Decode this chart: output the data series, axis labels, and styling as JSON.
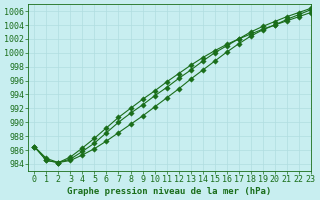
{
  "title": "Graphe pression niveau de la mer (hPa)",
  "bg_color": "#c8eef0",
  "grid_color": "#b0dde0",
  "line_color": "#1a6e1a",
  "marker_color": "#1a6e1a",
  "xlim": [
    -0.5,
    23
  ],
  "ylim": [
    983,
    1007
  ],
  "yticks": [
    984,
    986,
    988,
    990,
    992,
    994,
    996,
    998,
    1000,
    1002,
    1004,
    1006
  ],
  "xticks": [
    0,
    1,
    2,
    3,
    4,
    5,
    6,
    7,
    8,
    9,
    10,
    11,
    12,
    13,
    14,
    15,
    16,
    17,
    18,
    19,
    20,
    21,
    22,
    23
  ],
  "hours": [
    0,
    1,
    2,
    3,
    4,
    5,
    6,
    7,
    8,
    9,
    10,
    11,
    12,
    13,
    14,
    15,
    16,
    17,
    18,
    19,
    20,
    21,
    22,
    23
  ],
  "line1": [
    986.5,
    984.5,
    984.2,
    984.5,
    985.3,
    986.2,
    987.3,
    988.5,
    989.7,
    990.9,
    992.2,
    993.5,
    994.8,
    996.2,
    997.5,
    998.8,
    1000.1,
    1001.3,
    1002.4,
    1003.3,
    1004.0,
    1004.8,
    1005.5,
    1006.2
  ],
  "line2": [
    986.5,
    984.5,
    984.2,
    984.7,
    985.8,
    987.0,
    988.5,
    990.0,
    991.3,
    992.5,
    993.8,
    995.0,
    996.3,
    997.5,
    998.8,
    1000.0,
    1001.0,
    1002.0,
    1003.0,
    1003.8,
    1004.5,
    1005.2,
    1005.8,
    1006.4
  ],
  "line3": [
    986.5,
    984.8,
    984.2,
    985.0,
    986.3,
    987.7,
    989.2,
    990.7,
    992.0,
    993.3,
    994.5,
    995.8,
    997.0,
    998.2,
    999.3,
    1000.3,
    1001.2,
    1002.0,
    1002.7,
    1003.4,
    1004.0,
    1004.6,
    1005.2,
    1005.8
  ],
  "tick_fontsize": 6,
  "title_fontsize": 6.5,
  "linewidth": 0.8,
  "markersize": 2.8
}
